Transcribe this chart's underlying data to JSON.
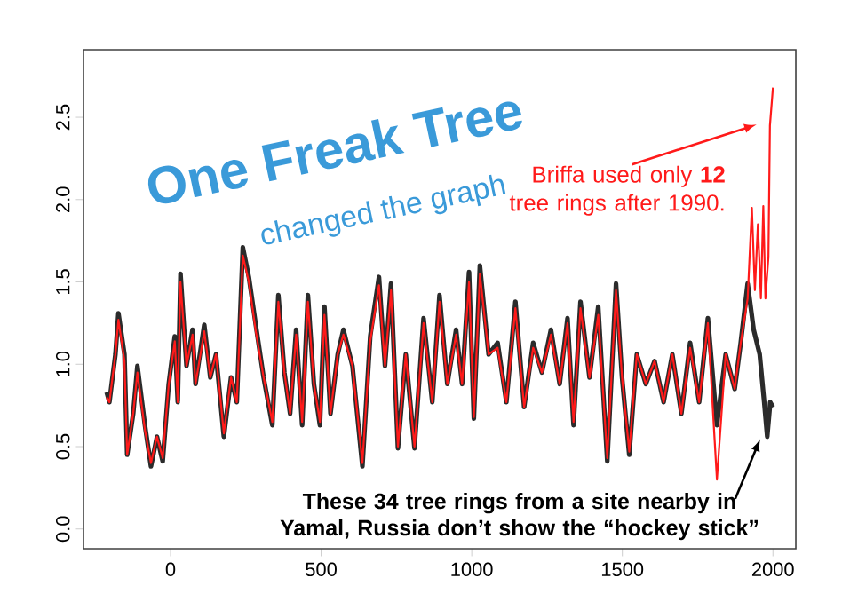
{
  "chart_data": {
    "type": "line",
    "title": "One Freak Tree",
    "subtitle": "changed the graph",
    "annotations": [
      "Briffa used only **12** tree rings after 1990.",
      "These 34 tree rings from a site nearby in Yamal, Russia don’t show the “hockey stick”"
    ],
    "xlim": [
      -289,
      2076
    ],
    "ylim": [
      -0.12,
      2.91
    ],
    "xticks": [
      0,
      500,
      1000,
      1500,
      2000
    ],
    "yticks": [
      {
        "value": 0,
        "label": "0.0"
      },
      0.5,
      {
        "value": 1,
        "label": "1.0"
      },
      1.5,
      {
        "value": 2,
        "label": "2.0"
      },
      2.5
    ],
    "series": [
      {
        "color": "#2b2b2b",
        "x": [
          -212,
          -203,
          -183,
          -173,
          -153,
          -144,
          -124,
          -110,
          -85,
          -65,
          -45,
          -26,
          -6,
          14,
          24,
          33,
          53,
          73,
          83,
          112,
          132,
          151,
          177,
          201,
          220,
          240,
          260,
          283,
          309,
          338,
          358,
          378,
          397,
          417,
          437,
          456,
          476,
          496,
          511,
          531,
          555,
          574,
          604,
          637,
          663,
          692,
          712,
          732,
          755,
          781,
          810,
          840,
          869,
          893,
          919,
          948,
          968,
          991,
          1007,
          1027,
          1056,
          1086,
          1115,
          1145,
          1174,
          1204,
          1233,
          1263,
          1292,
          1318,
          1338,
          1361,
          1391,
          1420,
          1450,
          1479,
          1499,
          1523,
          1548,
          1578,
          1607,
          1637,
          1666,
          1696,
          1725,
          1755,
          1784,
          1814,
          1843,
          1873,
          1893,
          1916,
          1936,
          1956,
          1971,
          1981,
          1991,
          2000
        ],
        "values": [
          0.83,
          0.77,
          1.06,
          1.31,
          1.06,
          0.45,
          0.7,
          0.99,
          0.63,
          0.38,
          0.56,
          0.41,
          0.88,
          1.17,
          0.77,
          1.55,
          0.99,
          1.21,
          0.88,
          1.24,
          0.92,
          1.06,
          0.56,
          0.92,
          0.77,
          1.71,
          1.53,
          1.24,
          0.92,
          0.63,
          1.42,
          0.95,
          0.7,
          1.21,
          0.63,
          1.42,
          0.88,
          0.63,
          1.35,
          0.7,
          1.06,
          1.21,
          0.99,
          0.38,
          1.17,
          1.53,
          0.99,
          1.49,
          0.49,
          1.06,
          0.49,
          1.28,
          0.77,
          1.42,
          0.88,
          1.21,
          0.88,
          1.56,
          0.67,
          1.6,
          1.06,
          1.13,
          0.77,
          1.38,
          0.74,
          1.13,
          0.95,
          1.21,
          0.88,
          1.28,
          0.63,
          1.38,
          0.92,
          1.35,
          0.41,
          1.49,
          0.92,
          0.45,
          1.06,
          0.88,
          1.02,
          0.77,
          1.06,
          0.7,
          1.13,
          0.77,
          1.28,
          0.63,
          1.06,
          0.85,
          1.13,
          1.49,
          1.21,
          1.06,
          0.77,
          0.56,
          0.77,
          0.74
        ]
      },
      {
        "color": "#ff1a1a",
        "x": [
          -212,
          -203,
          -183,
          -173,
          -153,
          -144,
          -124,
          -110,
          -85,
          -65,
          -45,
          -26,
          -6,
          14,
          24,
          33,
          53,
          73,
          83,
          112,
          132,
          151,
          177,
          201,
          220,
          240,
          260,
          283,
          309,
          338,
          358,
          378,
          397,
          417,
          437,
          456,
          476,
          496,
          511,
          531,
          555,
          574,
          604,
          637,
          663,
          692,
          712,
          732,
          755,
          781,
          810,
          840,
          869,
          893,
          919,
          948,
          968,
          991,
          1007,
          1027,
          1056,
          1086,
          1115,
          1145,
          1174,
          1204,
          1233,
          1263,
          1292,
          1318,
          1338,
          1361,
          1391,
          1420,
          1450,
          1479,
          1499,
          1523,
          1548,
          1578,
          1607,
          1637,
          1666,
          1696,
          1725,
          1755,
          1784,
          1814,
          1843,
          1873,
          1893,
          1916,
          1930,
          1940,
          1950,
          1960,
          1968,
          1975,
          1985,
          1990,
          2000
        ],
        "values": [
          0.8,
          0.77,
          1.06,
          1.27,
          1.02,
          0.45,
          0.7,
          0.95,
          0.6,
          0.4,
          0.56,
          0.43,
          0.88,
          1.14,
          0.77,
          1.5,
          0.99,
          1.18,
          0.88,
          1.2,
          0.92,
          1.06,
          0.58,
          0.92,
          0.77,
          1.66,
          1.5,
          1.2,
          0.92,
          0.65,
          1.38,
          0.95,
          0.7,
          1.18,
          0.65,
          1.38,
          0.88,
          0.65,
          1.3,
          0.7,
          1.06,
          1.18,
          0.99,
          0.4,
          1.14,
          1.48,
          0.99,
          1.45,
          0.5,
          1.06,
          0.5,
          1.25,
          0.77,
          1.38,
          0.88,
          1.18,
          0.88,
          1.5,
          0.68,
          1.55,
          1.06,
          1.1,
          0.77,
          1.34,
          0.74,
          1.1,
          0.95,
          1.18,
          0.88,
          1.25,
          0.65,
          1.34,
          0.92,
          1.3,
          0.43,
          1.45,
          0.92,
          0.47,
          1.06,
          0.88,
          1.02,
          0.77,
          1.06,
          0.7,
          1.1,
          0.77,
          1.25,
          0.3,
          1.06,
          0.85,
          1.13,
          1.4,
          1.95,
          1.45,
          1.85,
          1.4,
          1.96,
          1.4,
          1.65,
          2.45,
          2.68
        ]
      }
    ]
  }
}
